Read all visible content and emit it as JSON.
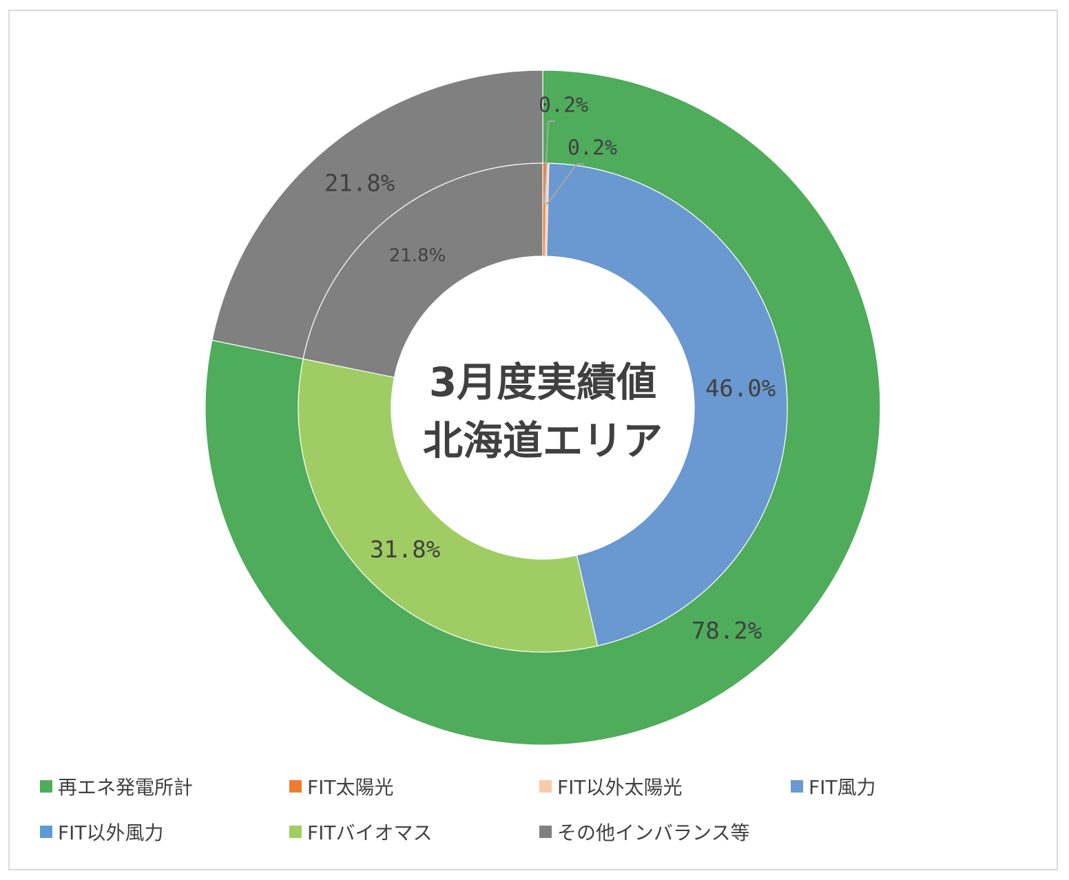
{
  "chart_data": {
    "type": "pie",
    "title": "3月度実績値\n北海道エリア",
    "title_lines": [
      "3月度実績値",
      "北海道エリア"
    ],
    "rings": [
      {
        "name": "outer",
        "slices": [
          {
            "label": "再エネ発電所計",
            "value": 78.2,
            "color": "#4eac5b",
            "data_label": "78.2%"
          },
          {
            "label": "その他インバランス等",
            "value": 21.8,
            "color": "#808080",
            "data_label": "21.8%"
          }
        ]
      },
      {
        "name": "inner",
        "slices": [
          {
            "label": "FIT太陽光",
            "value": 0.2,
            "color": "#ed7d31",
            "data_label": "0.2%"
          },
          {
            "label": "FIT以外太陽光",
            "value": 0.2,
            "color": "#f8cbad",
            "data_label": "0.2%"
          },
          {
            "label": "FIT風力",
            "value": 46.0,
            "color": "#6a98d0",
            "data_label": "46.0%"
          },
          {
            "label": "FIT以外風力",
            "value": 0.0,
            "color": "#5b9bd5",
            "data_label": ""
          },
          {
            "label": "FITバイオマス",
            "value": 31.8,
            "color": "#a0cd63",
            "data_label": "31.8%"
          },
          {
            "label": "その他インバランス等",
            "value": 21.8,
            "color": "#808080",
            "data_label": "21.8%"
          }
        ]
      }
    ],
    "legend": [
      {
        "label": "再エネ発電所計",
        "color": "#4eac5b"
      },
      {
        "label": "FIT太陽光",
        "color": "#ed7d31"
      },
      {
        "label": "FIT以外太陽光",
        "color": "#f8cbad"
      },
      {
        "label": "FIT風力",
        "color": "#6a98d0"
      },
      {
        "label": "FIT以外風力",
        "color": "#5b9bd5"
      },
      {
        "label": "FITバイオマス",
        "color": "#a0cd63"
      },
      {
        "label": "その他インバランス等",
        "color": "#808080"
      }
    ],
    "legend_position": "bottom"
  }
}
